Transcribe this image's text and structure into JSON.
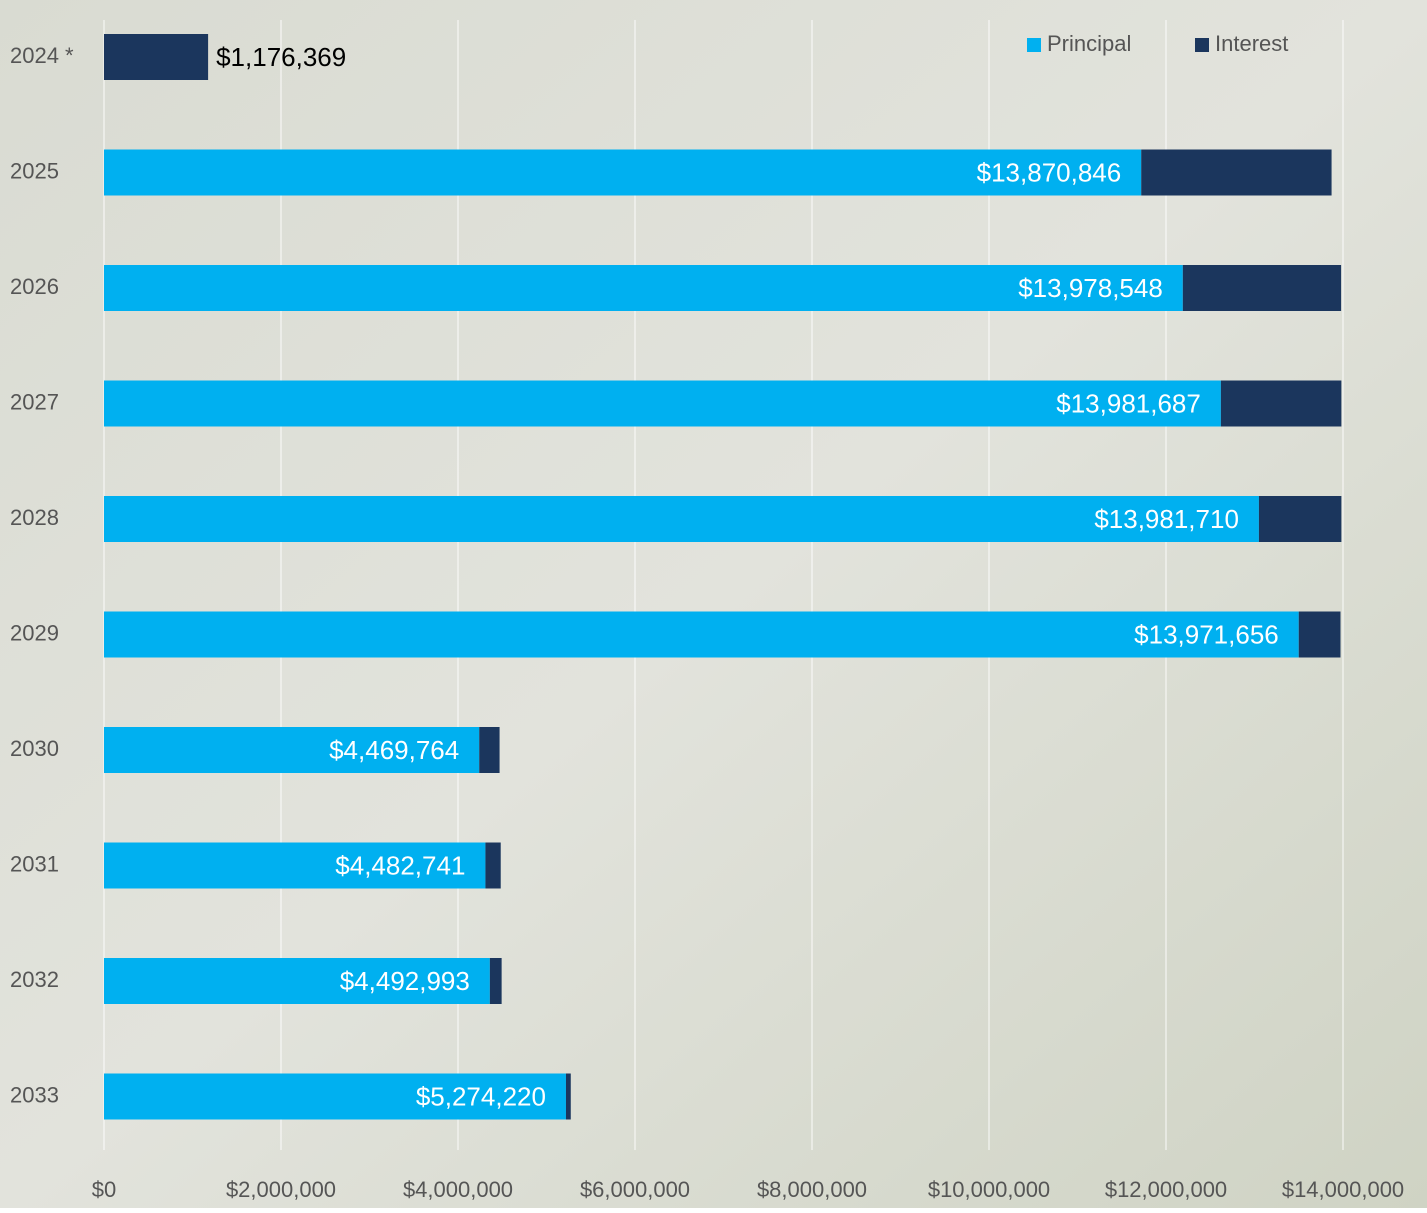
{
  "chart_data": {
    "type": "stacked-bar-horizontal",
    "categories": [
      "2024 *",
      "2025",
      "2026",
      "2027",
      "2028",
      "2029",
      "2030",
      "2031",
      "2032",
      "2033"
    ],
    "series": [
      {
        "name": "Principal",
        "color": "#00b0f0",
        "values": [
          0,
          11720000,
          12190000,
          12620000,
          13050000,
          13500000,
          4240000,
          4310000,
          4360000,
          5220000
        ]
      },
      {
        "name": "Interest",
        "color": "#1b365d",
        "values": [
          1176369,
          2150846,
          1788548,
          1361687,
          931710,
          471656,
          229764,
          172741,
          132993,
          54220
        ]
      }
    ],
    "totals": [
      1176369,
      13870846,
      13978548,
      13981687,
      13981710,
      13971656,
      4469764,
      4482741,
      4492993,
      5274220
    ],
    "total_labels": [
      "$1,176,369",
      "$13,870,846",
      "$13,978,548",
      "$13,981,687",
      "$13,981,710",
      "$13,971,656",
      "$4,469,764",
      "$4,482,741",
      "$4,492,993",
      "$5,274,220"
    ],
    "xlim": [
      0,
      14000000
    ],
    "xticks": [
      {
        "value": 0,
        "label": "$0"
      },
      {
        "value": 2000000,
        "label": "$2,000,000"
      },
      {
        "value": 4000000,
        "label": "$4,000,000"
      },
      {
        "value": 6000000,
        "label": "$6,000,000"
      },
      {
        "value": 8000000,
        "label": "$8,000,000"
      },
      {
        "value": 10000000,
        "label": "$10,000,000"
      },
      {
        "value": 12000000,
        "label": "$12,000,000"
      },
      {
        "value": 14000000,
        "label": "$14,000,000"
      }
    ],
    "grid": true,
    "legend": "top-right"
  }
}
